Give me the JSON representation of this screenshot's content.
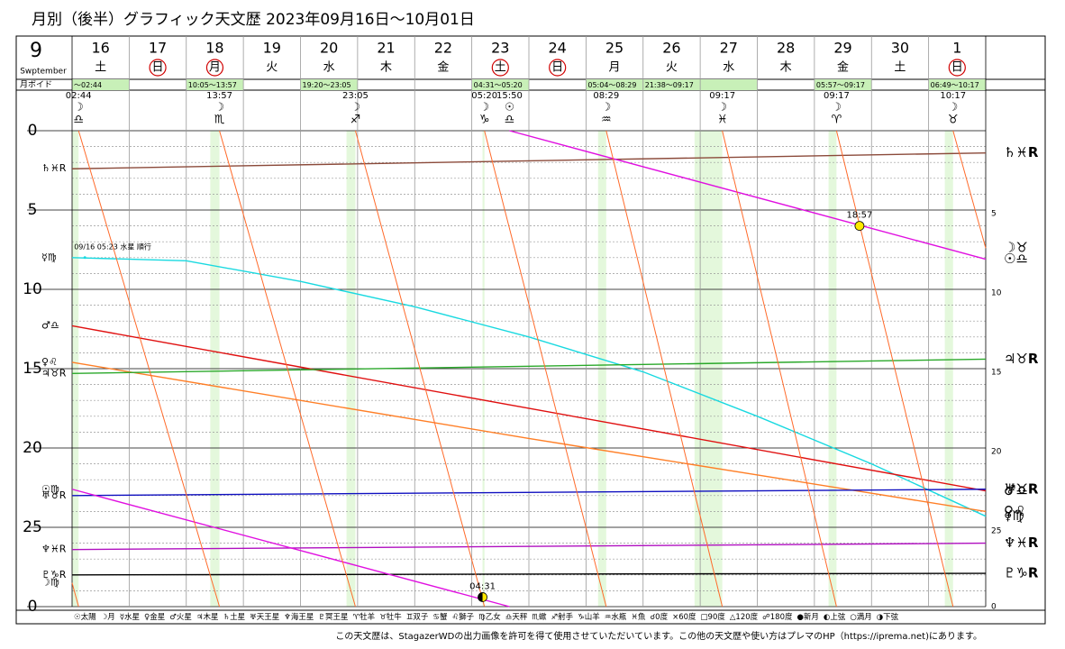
{
  "header": {
    "title": "月別（後半）グラフィック天文歴  2023年09月16日～10月01日",
    "month": "9",
    "month_name": "Swptember",
    "void_label": "月ボイド"
  },
  "chart_data": {
    "type": "line",
    "xlim": [
      0,
      16
    ],
    "ylim": [
      0,
      30
    ],
    "yticks": [
      0,
      5,
      10,
      15,
      20,
      25,
      {
        "value": 30,
        "label": "0"
      }
    ],
    "grid": true,
    "days": [
      {
        "day": "16",
        "weekday": "土",
        "holiday": false
      },
      {
        "day": "17",
        "weekday": "日",
        "holiday": true
      },
      {
        "day": "18",
        "weekday": "月",
        "holiday": true
      },
      {
        "day": "19",
        "weekday": "火",
        "holiday": false
      },
      {
        "day": "20",
        "weekday": "水",
        "holiday": false
      },
      {
        "day": "21",
        "weekday": "木",
        "holiday": false
      },
      {
        "day": "22",
        "weekday": "金",
        "holiday": false
      },
      {
        "day": "23",
        "weekday": "土",
        "holiday": true
      },
      {
        "day": "24",
        "weekday": "日",
        "holiday": true
      },
      {
        "day": "25",
        "weekday": "月",
        "holiday": false
      },
      {
        "day": "26",
        "weekday": "火",
        "holiday": false
      },
      {
        "day": "27",
        "weekday": "水",
        "holiday": false
      },
      {
        "day": "28",
        "weekday": "木",
        "holiday": false
      },
      {
        "day": "29",
        "weekday": "金",
        "holiday": false
      },
      {
        "day": "30",
        "weekday": "土",
        "holiday": false
      },
      {
        "day": "1",
        "weekday": "日",
        "holiday": true
      }
    ],
    "void": [
      {
        "label": "～02:44",
        "start": 0,
        "end": 0.114
      },
      {
        "label": "10:05～13:57",
        "start": 2.42,
        "end": 2.581
      },
      {
        "label": "19:20～23:05",
        "start": 4.806,
        "end": 4.962
      },
      {
        "label": "04:31～05:20",
        "start": 7.188,
        "end": 7.222
      },
      {
        "label": "05:04～08:29",
        "start": 9.211,
        "end": 9.354
      },
      {
        "label": "21:38～09:17",
        "start": 10.901,
        "end": 11.387
      },
      {
        "label": "05:57～09:17",
        "start": 13.248,
        "end": 13.387
      },
      {
        "label": "06:49～10:17",
        "start": 15.284,
        "end": 15.428
      }
    ],
    "ingress": [
      {
        "time": "02:44",
        "body": "☽",
        "sign": "♎",
        "x": 0.114
      },
      {
        "time": "13:57",
        "body": "☽",
        "sign": "♏",
        "x": 2.581
      },
      {
        "time": "23:05",
        "body": "☽",
        "sign": "♐",
        "x": 4.962
      },
      {
        "time": "05:20",
        "body": "☽",
        "sign": "♑",
        "x": 7.222
      },
      {
        "time": "15:50",
        "body": "☉",
        "sign": "♎",
        "x": 7.66
      },
      {
        "time": "08:29",
        "body": "☽",
        "sign": "♒",
        "x": 9.354
      },
      {
        "time": "09:17",
        "body": "☽",
        "sign": "♓",
        "x": 11.387
      },
      {
        "time": "09:17",
        "body": "☽",
        "sign": "♈",
        "x": 13.387
      },
      {
        "time": "10:17",
        "body": "☽",
        "sign": "♉",
        "x": 15.428
      }
    ],
    "series": [
      {
        "label_start": "♄♓R",
        "label_end": "♄♓R",
        "color": "#8b4a3a",
        "x": [
          0,
          16
        ],
        "values": [
          2.4,
          1.4
        ]
      },
      {
        "label_start": "☿♍",
        "label_end": "☿♍",
        "color": "#19d9e0",
        "x": [
          0,
          2,
          4,
          6,
          8,
          10,
          12,
          14,
          16
        ],
        "values": [
          8.0,
          8.2,
          9.5,
          11.1,
          13.0,
          15.2,
          18.0,
          21.0,
          24.3
        ]
      },
      {
        "label_start": "♂♎",
        "label_end": "♂♎",
        "color": "#e01010",
        "x": [
          0,
          16
        ],
        "values": [
          12.3,
          22.7
        ]
      },
      {
        "label_start": "♀♌",
        "label_end": "♀♌",
        "color": "#ff7f27",
        "x": [
          0,
          8,
          16
        ],
        "values": [
          14.6,
          19.4,
          24.0
        ]
      },
      {
        "label_start": "♃♉R",
        "label_end": "♃♉R",
        "color": "#2aa82a",
        "x": [
          0,
          16
        ],
        "values": [
          15.3,
          14.4
        ]
      },
      {
        "label_start": "♅♉R",
        "label_end": "♅♉R",
        "color": "#1010c0",
        "x": [
          0,
          16
        ],
        "values": [
          23.0,
          22.6
        ]
      },
      {
        "label_start": "♆♓R",
        "label_end": "♆♓R",
        "color": "#b010c0",
        "x": [
          0,
          16
        ],
        "values": [
          26.4,
          26.0
        ]
      },
      {
        "label_start": "♇♑R",
        "label_end": "♇♑R",
        "color": "#000000",
        "x": [
          0,
          16
        ],
        "values": [
          28.0,
          27.9
        ]
      },
      {
        "label_start": "☉♍",
        "label_end": "☉♎",
        "color": "#e010e0",
        "x": [
          0,
          7.66,
          7.66,
          7.66,
          16
        ],
        "values": [
          22.6,
          30,
          null,
          0,
          8.1
        ]
      },
      {
        "label_start": "☽♍",
        "label_end": "☽♉",
        "color": "#ff6a2a",
        "x": [
          0,
          0.114,
          0.114,
          0.114,
          2.581,
          2.581,
          2.581,
          4.962,
          4.962,
          4.962,
          7.222,
          7.222,
          7.222,
          9.354,
          9.354,
          9.354,
          11.387,
          11.387,
          11.387,
          13.387,
          13.387,
          13.387,
          15.428,
          15.428,
          15.428,
          16
        ],
        "values": [
          28.5,
          30,
          null,
          0,
          30,
          null,
          0,
          30,
          null,
          0,
          30,
          null,
          0,
          30,
          null,
          0,
          30,
          null,
          0,
          30,
          null,
          0,
          30,
          null,
          0,
          7.4
        ]
      }
    ],
    "annotations": [
      {
        "text": "09/16 05:23 水星 順行",
        "x": 0.224,
        "value": 8.0
      }
    ],
    "phases": [
      {
        "label": "18:57",
        "x": 13.79,
        "value": 6.0,
        "phase": "full"
      },
      {
        "label": "04:31",
        "x": 7.188,
        "value": 29.4,
        "phase": "first"
      }
    ],
    "legend": [
      "☉太陽",
      "☽月",
      "☿水星",
      "♀金星",
      "♂火星",
      "♃木星",
      "♄土星",
      "♅天王星",
      "♆海王星",
      "♇冥王星",
      "♈牡羊",
      "♉牡牛",
      "♊双子",
      "♋蟹",
      "♌獅子",
      "♍乙女",
      "♎天秤",
      "♏蠍",
      "♐射手",
      "♑山羊",
      "♒水瓶",
      "♓魚",
      "☌0度",
      "×60度",
      "□90度",
      "△120度",
      "☍180度",
      "●新月",
      "◐上弦",
      "○満月",
      "◑下弦"
    ]
  },
  "footer": "この天文歴は、StagazerWDの出力画像を許可を得て使用させていただいています。この他の天文歴や使い方はプレマのHP（https://iprema.net)にあります。"
}
